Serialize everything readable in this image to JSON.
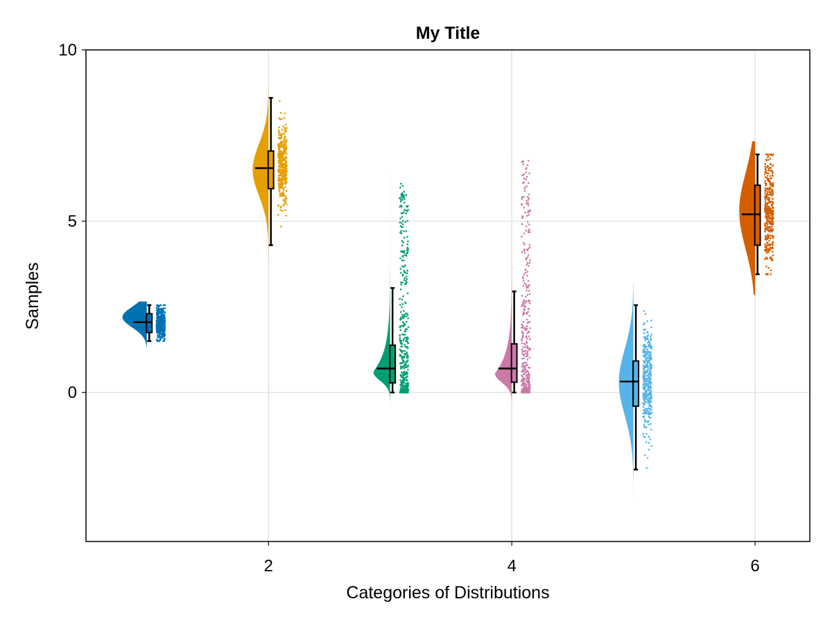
{
  "chart_data": {
    "type": "raincloud",
    "title": "My Title",
    "xlabel": "Categories of Distributions",
    "ylabel": "Samples",
    "xlim": [
      0.5,
      6.45
    ],
    "ylim": [
      -4.35,
      10
    ],
    "xticks": [
      2,
      4,
      6
    ],
    "xtick_labels": [
      "2",
      "4",
      "6"
    ],
    "yticks": [
      0,
      5,
      10
    ],
    "ytick_labels": [
      "0",
      "5",
      "10"
    ],
    "grid": true,
    "series": [
      {
        "category": 1,
        "color": "#0072B2",
        "min": 1.5,
        "q1": 1.75,
        "median": 2.05,
        "q3": 2.3,
        "max": 2.55,
        "data_min": 1.5,
        "data_max": 2.55,
        "density_peak": 2.2,
        "density_spread": 0.3,
        "density_width": 0.2
      },
      {
        "category": 2,
        "color": "#E69F00",
        "min": 4.3,
        "q1": 5.95,
        "median": 6.55,
        "q3": 7.05,
        "max": 8.6,
        "data_min": 4.3,
        "data_max": 8.6,
        "density_peak": 6.5,
        "density_spread": 0.75,
        "density_width": 0.13
      },
      {
        "category": 3,
        "color": "#009E73",
        "min": 0.0,
        "q1": 0.28,
        "median": 0.7,
        "q3": 1.38,
        "max": 3.05,
        "data_min": 0.0,
        "data_max": 6.1,
        "density_peak": 0.6,
        "density_spread": 0.7,
        "density_width": 0.14,
        "skewed": true
      },
      {
        "category": 4,
        "color": "#CC79A7",
        "min": 0.0,
        "q1": 0.3,
        "median": 0.7,
        "q3": 1.42,
        "max": 2.95,
        "data_min": 0.0,
        "data_max": 6.8,
        "density_peak": 0.55,
        "density_spread": 0.7,
        "density_width": 0.14,
        "skewed": true
      },
      {
        "category": 5,
        "color": "#56B4E9",
        "min": -2.25,
        "q1": -0.4,
        "median": 0.32,
        "q3": 0.92,
        "max": 2.55,
        "data_min": -2.7,
        "data_max": 2.9,
        "density_peak": 0.3,
        "density_spread": 0.95,
        "density_width": 0.12
      },
      {
        "category": 6,
        "color": "#D55E00",
        "min": 3.45,
        "q1": 4.3,
        "median": 5.2,
        "q3": 6.05,
        "max": 6.95,
        "data_min": 3.45,
        "data_max": 6.95,
        "density_peak": 5.3,
        "density_spread": 1.1,
        "density_width": 0.13
      }
    ]
  }
}
